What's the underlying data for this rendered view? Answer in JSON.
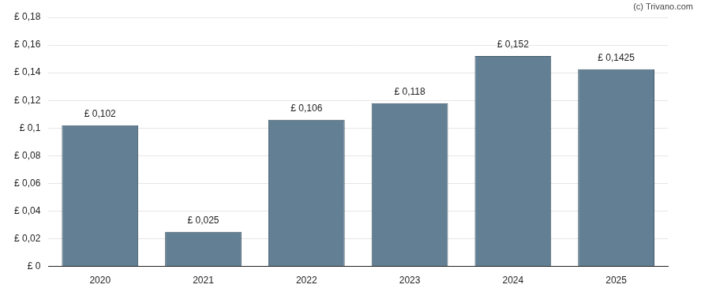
{
  "chart_data": {
    "type": "bar",
    "annotations": [
      "(c) Trivano.com"
    ],
    "categories": [
      "2020",
      "2021",
      "2022",
      "2023",
      "2024",
      "2025"
    ],
    "values": [
      0.102,
      0.025,
      0.106,
      0.118,
      0.152,
      0.1425
    ],
    "value_labels": [
      "£ 0,102",
      "£ 0,025",
      "£ 0,106",
      "£ 0,118",
      "£ 0,152",
      "£ 0,1425"
    ],
    "data_labels": true,
    "color": "#637f93",
    "ylim": [
      0,
      0.18
    ],
    "yticks": [
      {
        "value": 0,
        "label": "£ 0"
      },
      {
        "value": 0.02,
        "label": "£ 0,02"
      },
      {
        "value": 0.04,
        "label": "£ 0,04"
      },
      {
        "value": 0.06,
        "label": "£ 0,06"
      },
      {
        "value": 0.08,
        "label": "£ 0,08"
      },
      {
        "value": 0.1,
        "label": "£ 0,1"
      },
      {
        "value": 0.12,
        "label": "£ 0,12"
      },
      {
        "value": 0.14,
        "label": "£ 0,14"
      },
      {
        "value": 0.16,
        "label": "£ 0,16"
      },
      {
        "value": 0.18,
        "label": "£ 0,18"
      }
    ],
    "grid": true
  }
}
